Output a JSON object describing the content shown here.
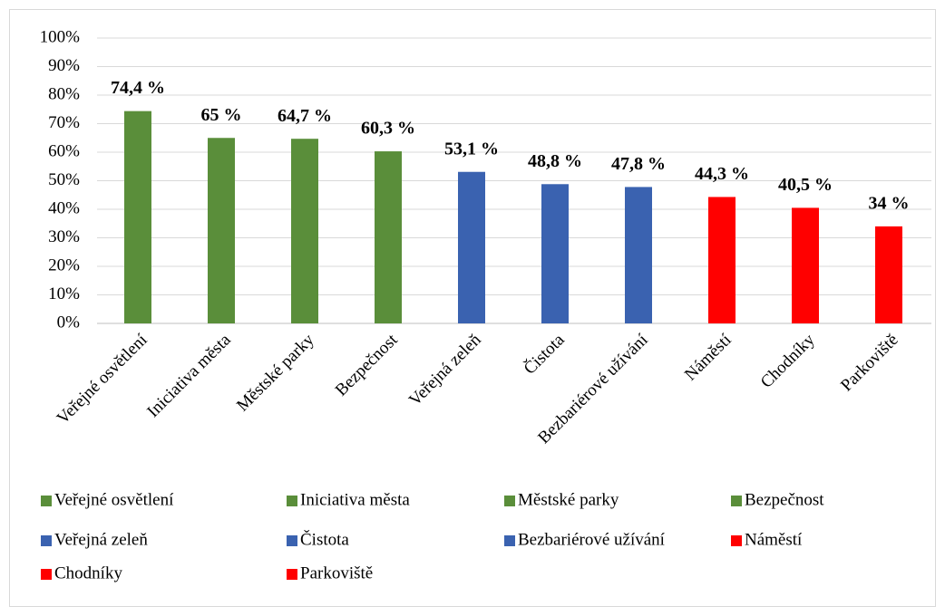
{
  "chart_data": {
    "type": "bar",
    "categories": [
      "Veřejné osvětlení",
      "Iniciativa města",
      "Městské parky",
      "Bezpečnost",
      "Veřejná zeleň",
      "Čistota",
      "Bezbariérové užívání",
      "Náměstí",
      "Chodníky",
      "Parkoviště"
    ],
    "values": [
      74.4,
      65,
      64.7,
      60.3,
      53.1,
      48.8,
      47.8,
      44.3,
      40.5,
      34
    ],
    "value_labels": [
      "74,4 %",
      "65 %",
      "64,7 %",
      "60,3 %",
      "53,1 %",
      "48,8 %",
      "47,8 %",
      "44,3 %",
      "40,5 %",
      "34 %"
    ],
    "colors": [
      "#5a8e3a",
      "#5a8e3a",
      "#5a8e3a",
      "#5a8e3a",
      "#3a62b0",
      "#3a62b0",
      "#3a62b0",
      "#ff0000",
      "#ff0000",
      "#ff0000"
    ],
    "ylim": [
      0,
      100
    ],
    "yticks": [
      {
        "value": 0,
        "label": "0%"
      },
      {
        "value": 10,
        "label": "10%"
      },
      {
        "value": 20,
        "label": "20%"
      },
      {
        "value": 30,
        "label": "30%"
      },
      {
        "value": 40,
        "label": "40%"
      },
      {
        "value": 50,
        "label": "50%"
      },
      {
        "value": 60,
        "label": "60%"
      },
      {
        "value": 70,
        "label": "70%"
      },
      {
        "value": 80,
        "label": "80%"
      },
      {
        "value": 90,
        "label": "90%"
      },
      {
        "value": 100,
        "label": "100%"
      }
    ],
    "grid": true,
    "legend": "bottom"
  }
}
